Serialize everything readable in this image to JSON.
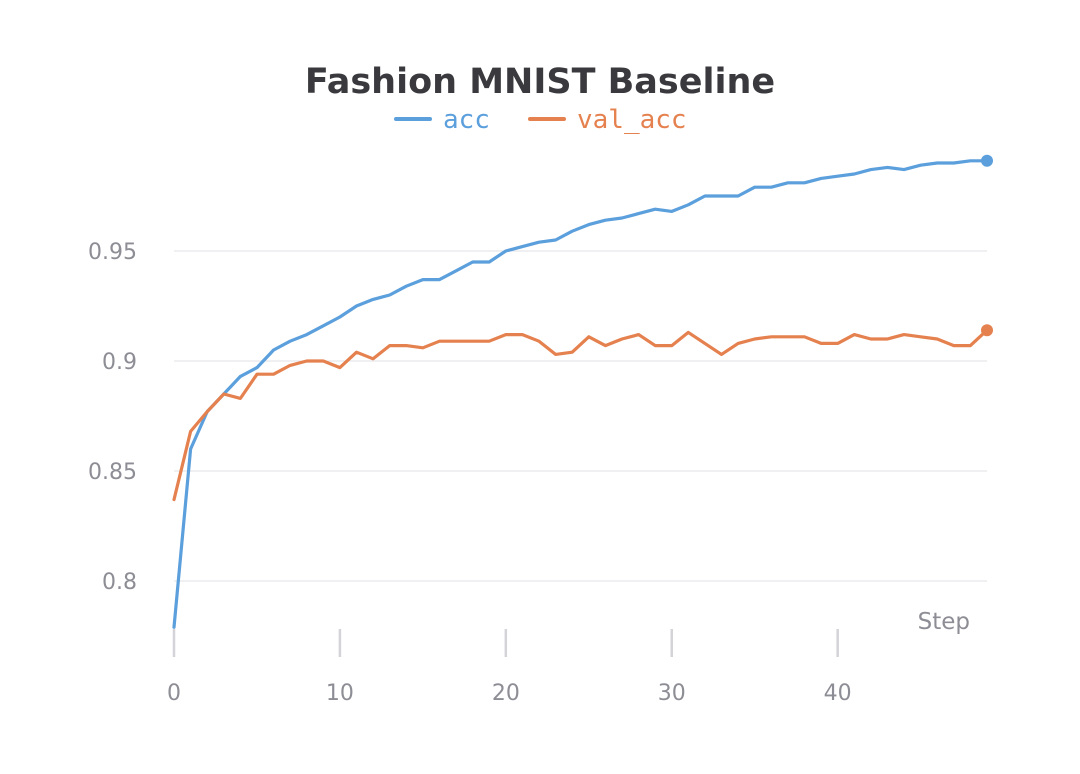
{
  "chart_data": {
    "type": "line",
    "title": "Fashion MNIST Baseline",
    "xlabel": "Step",
    "ylabel": "",
    "xlim": [
      0,
      49
    ],
    "ylim": [
      0.77,
      0.995
    ],
    "xticks": [
      0,
      10,
      20,
      30,
      40
    ],
    "yticks": [
      0.8,
      0.85,
      0.9,
      0.95
    ],
    "ytick_labels": [
      "0.8",
      "0.85",
      "0.9",
      "0.95"
    ],
    "grid": "horizontal",
    "legend_position": "top-center",
    "colors": {
      "acc": "#5b9fdc",
      "val_acc": "#e5814f",
      "grid": "#e6e6e9",
      "tick": "#d4d4d8",
      "text": "#8d8d95"
    },
    "series": [
      {
        "name": "acc",
        "x": [
          0,
          1,
          2,
          3,
          4,
          5,
          6,
          7,
          8,
          9,
          10,
          11,
          12,
          13,
          14,
          15,
          16,
          17,
          18,
          19,
          20,
          21,
          22,
          23,
          24,
          25,
          26,
          27,
          28,
          29,
          30,
          31,
          32,
          33,
          34,
          35,
          36,
          37,
          38,
          39,
          40,
          41,
          42,
          43,
          44,
          45,
          46,
          47,
          48,
          49
        ],
        "values": [
          0.779,
          0.86,
          0.877,
          0.885,
          0.893,
          0.897,
          0.905,
          0.909,
          0.912,
          0.916,
          0.92,
          0.925,
          0.928,
          0.93,
          0.934,
          0.937,
          0.937,
          0.941,
          0.945,
          0.945,
          0.95,
          0.952,
          0.954,
          0.955,
          0.959,
          0.962,
          0.964,
          0.965,
          0.967,
          0.969,
          0.968,
          0.971,
          0.975,
          0.975,
          0.975,
          0.979,
          0.979,
          0.981,
          0.981,
          0.983,
          0.984,
          0.985,
          0.987,
          0.988,
          0.987,
          0.989,
          0.99,
          0.99,
          0.991,
          0.991
        ]
      },
      {
        "name": "val_acc",
        "x": [
          0,
          1,
          2,
          3,
          4,
          5,
          6,
          7,
          8,
          9,
          10,
          11,
          12,
          13,
          14,
          15,
          16,
          17,
          18,
          19,
          20,
          21,
          22,
          23,
          24,
          25,
          26,
          27,
          28,
          29,
          30,
          31,
          32,
          33,
          34,
          35,
          36,
          37,
          38,
          39,
          40,
          41,
          42,
          43,
          44,
          45,
          46,
          47,
          48,
          49
        ],
        "values": [
          0.837,
          0.868,
          0.877,
          0.885,
          0.883,
          0.894,
          0.894,
          0.898,
          0.9,
          0.9,
          0.897,
          0.904,
          0.901,
          0.907,
          0.907,
          0.906,
          0.909,
          0.909,
          0.909,
          0.909,
          0.912,
          0.912,
          0.909,
          0.903,
          0.904,
          0.911,
          0.907,
          0.91,
          0.912,
          0.907,
          0.907,
          0.913,
          0.908,
          0.903,
          0.908,
          0.91,
          0.911,
          0.911,
          0.911,
          0.908,
          0.908,
          0.912,
          0.91,
          0.91,
          0.912,
          0.911,
          0.91,
          0.907,
          0.907,
          0.914
        ]
      }
    ]
  }
}
